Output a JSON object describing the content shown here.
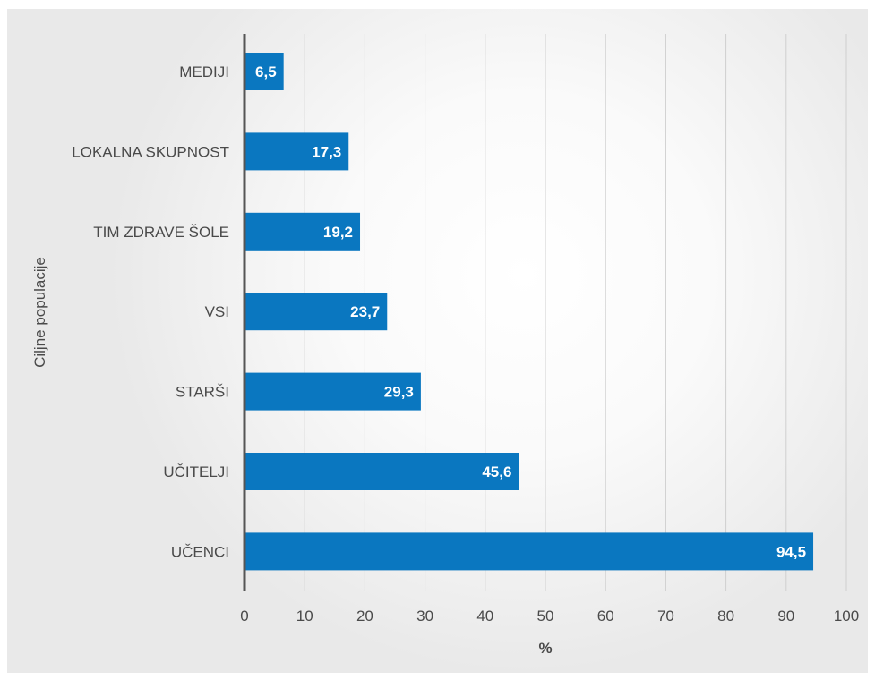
{
  "chart_data": {
    "type": "bar",
    "orientation": "horizontal",
    "categories": [
      "MEDIJI",
      "LOKALNA SKUPNOST",
      "TIM ZDRAVE ŠOLE",
      "VSI",
      "STARŠI",
      "UČITELJI",
      "UČENCI"
    ],
    "values": [
      6.5,
      17.3,
      19.2,
      23.7,
      29.3,
      45.6,
      94.5
    ],
    "data_labels": [
      "6,5",
      "17,3",
      "19,2",
      "23,7",
      "29,3",
      "45,6",
      "94,5"
    ],
    "xlabel": "%",
    "ylabel": "Ciljne populacije",
    "xlim": [
      0,
      100
    ],
    "xticks": [
      0,
      10,
      20,
      30,
      40,
      50,
      60,
      70,
      80,
      90,
      100
    ],
    "grid": "vertical",
    "legend": "none",
    "colors": {
      "bar": "#0a77c0",
      "data_label": "#ffffff",
      "grid": "#cfcfcf",
      "axis": "#555555",
      "text": "#4a4a4a"
    }
  }
}
